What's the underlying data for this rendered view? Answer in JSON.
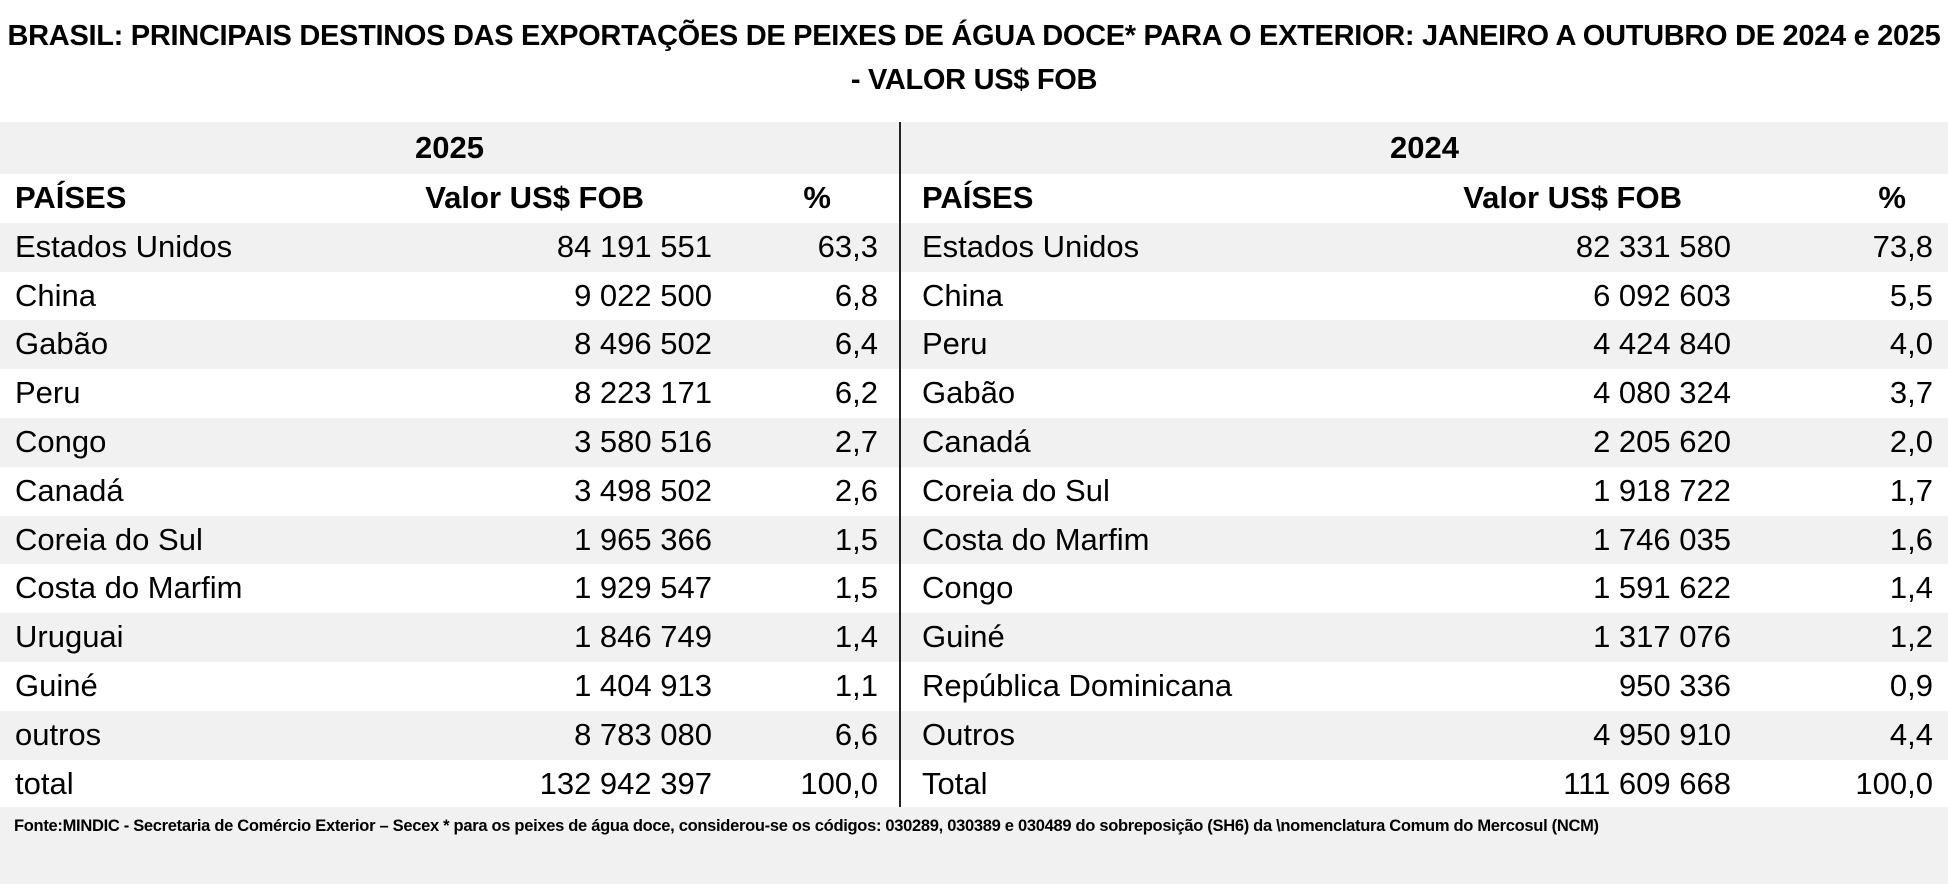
{
  "title": "BRASIL: PRINCIPAIS DESTINOS DAS EXPORTAÇÕES DE PEIXES DE ÁGUA DOCE* PARA O EXTERIOR: JANEIRO A OUTUBRO DE 2024 e 2025 - VALOR US$ FOB",
  "tables": [
    {
      "year": "2025",
      "headers": [
        "PAÍSES",
        "Valor  US$ FOB",
        "%"
      ],
      "rows": [
        [
          "Estados Unidos",
          "84 191 551",
          "63,3"
        ],
        [
          "China",
          "9 022 500",
          "6,8"
        ],
        [
          "Gabão",
          "8 496 502",
          "6,4"
        ],
        [
          "Peru",
          "8 223 171",
          "6,2"
        ],
        [
          "Congo",
          "3 580 516",
          "2,7"
        ],
        [
          "Canadá",
          "3 498 502",
          "2,6"
        ],
        [
          "Coreia do Sul",
          "1 965 366",
          "1,5"
        ],
        [
          "Costa do Marfim",
          "1 929 547",
          "1,5"
        ],
        [
          "Uruguai",
          "1 846 749",
          "1,4"
        ],
        [
          "Guiné",
          "1 404 913",
          "1,1"
        ],
        [
          "outros",
          "8 783 080",
          "6,6"
        ],
        [
          "total",
          "132 942 397",
          "100,0"
        ]
      ]
    },
    {
      "year": "2024",
      "headers": [
        "PAÍSES",
        "Valor  US$ FOB",
        "%"
      ],
      "rows": [
        [
          "Estados Unidos",
          "82 331 580",
          "73,8"
        ],
        [
          "China",
          "6 092 603",
          "5,5"
        ],
        [
          "Peru",
          "4 424 840",
          "4,0"
        ],
        [
          "Gabão",
          "4 080 324",
          "3,7"
        ],
        [
          "Canadá",
          "2 205 620",
          "2,0"
        ],
        [
          "Coreia do Sul",
          "1 918 722",
          "1,7"
        ],
        [
          "Costa do Marfim",
          "1 746 035",
          "1,6"
        ],
        [
          "Congo",
          "1 591 622",
          "1,4"
        ],
        [
          "Guiné",
          "1 317 076",
          "1,2"
        ],
        [
          "República Dominicana",
          "950 336",
          "0,9"
        ],
        [
          "Outros",
          "4 950 910",
          "4,4"
        ],
        [
          "Total",
          "111 609 668",
          "100,0"
        ]
      ]
    }
  ],
  "footer": "Fonte:MINDIC - Secretaria de Comércio Exterior – Secex * para os peixes de água doce, considerou-se os códigos: 030289, 030389 e 030489 do  sobreposição (SH6)  da \\nomenclatura Comum do Mercosul (NCM)"
}
